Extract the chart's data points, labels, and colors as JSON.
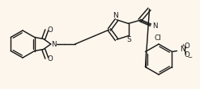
{
  "bg_color": "#fdf6ec",
  "line_color": "#1a1a1a",
  "line_width": 1.05,
  "font_size": 6.2,
  "figsize": [
    2.47,
    1.11
  ],
  "dpi": 100,
  "atoms": {
    "N_isoindole": "N",
    "O_top": "O",
    "O_bot": "O",
    "N_thiazole": "N",
    "S_thiazole": "S",
    "CN_N": "N",
    "Cl": "Cl",
    "NO2": "NO",
    "O_neg": "O",
    "minus": "−"
  }
}
